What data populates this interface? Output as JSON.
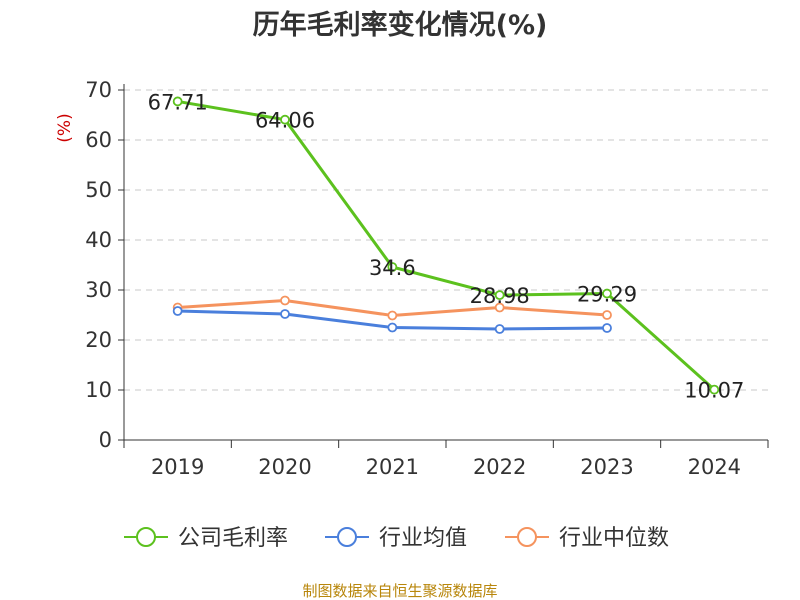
{
  "chart_data": {
    "type": "line",
    "title": "历年毛利率变化情况(%)",
    "ylabel": "(%)",
    "xlabel": "",
    "categories": [
      "2019",
      "2020",
      "2021",
      "2022",
      "2023",
      "2024"
    ],
    "ylim": [
      0,
      70
    ],
    "yticks": [
      0,
      10,
      20,
      30,
      40,
      50,
      60,
      70
    ],
    "grid": true,
    "legend_position": "bottom",
    "series": [
      {
        "name": "公司毛利率",
        "color": "#5cc11e",
        "values": [
          67.71,
          64.06,
          34.6,
          28.98,
          29.29,
          10.07
        ],
        "data_labels": [
          "67.71",
          "64.06",
          "34.6",
          "28.98",
          "29.29",
          "10.07"
        ]
      },
      {
        "name": "行业均值",
        "color": "#4a7fdc",
        "values": [
          25.8,
          25.2,
          22.5,
          22.2,
          22.4,
          null
        ]
      },
      {
        "name": "行业中位数",
        "color": "#f5935e",
        "values": [
          26.5,
          27.9,
          24.9,
          26.5,
          25.0,
          null
        ]
      }
    ],
    "source_note": "制图数据来自恒生聚源数据库"
  }
}
